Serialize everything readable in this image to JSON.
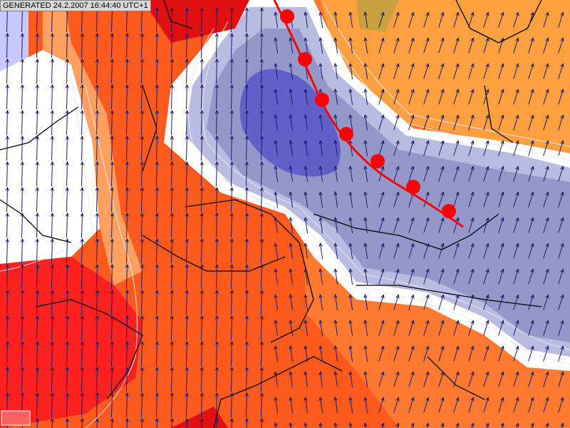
{
  "header": {
    "generated": "GENERATED 24.2.2007 16:44:40 UTC+1"
  }
}
